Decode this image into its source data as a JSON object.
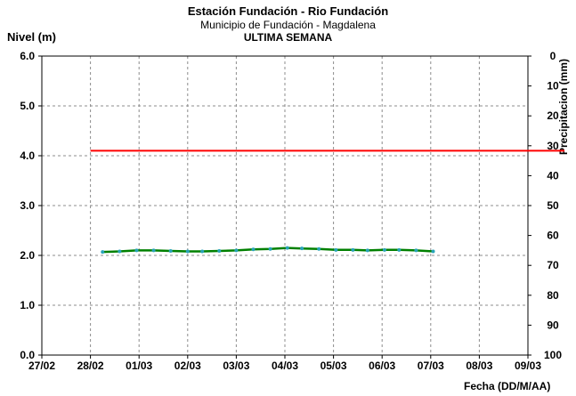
{
  "chart_data": {
    "type": "line",
    "title": "Estación Fundación - Rio Fundación",
    "subtitle": "Municipio de Fundación - Magdalena",
    "subtitle2": "ULTIMA SEMANA",
    "ylabel": "Nivel (m)",
    "y2label": "Precipitacion (mm)",
    "xlabel": "Fecha (DD/M/AA)",
    "x_ticks": [
      "27/02",
      "28/02",
      "01/03",
      "02/03",
      "03/03",
      "04/03",
      "05/03",
      "06/03",
      "07/03",
      "08/03",
      "09/03"
    ],
    "y_ticks": [
      "0.0",
      "1.0",
      "2.0",
      "3.0",
      "4.0",
      "5.0",
      "6.0"
    ],
    "y2_ticks": [
      "0",
      "10",
      "20",
      "30",
      "40",
      "50",
      "60",
      "70",
      "80",
      "90",
      "100"
    ],
    "ylim": [
      0,
      6
    ],
    "y2lim": [
      100,
      0
    ],
    "grid": true,
    "series": [
      {
        "color": "#ff0000",
        "points": [
          [
            1.0,
            4.1
          ],
          [
            10.75,
            4.1
          ]
        ]
      },
      {
        "color": "#008000",
        "marker_color": "#29a3b8",
        "points": [
          [
            1.25,
            2.07
          ],
          [
            1.6,
            2.08
          ],
          [
            1.95,
            2.1
          ],
          [
            2.3,
            2.1
          ],
          [
            2.65,
            2.09
          ],
          [
            3.0,
            2.08
          ],
          [
            3.3,
            2.08
          ],
          [
            3.65,
            2.09
          ],
          [
            4.0,
            2.1
          ],
          [
            4.35,
            2.12
          ],
          [
            4.7,
            2.13
          ],
          [
            5.05,
            2.15
          ],
          [
            5.35,
            2.14
          ],
          [
            5.7,
            2.13
          ],
          [
            6.05,
            2.11
          ],
          [
            6.4,
            2.11
          ],
          [
            6.7,
            2.1
          ],
          [
            7.05,
            2.11
          ],
          [
            7.35,
            2.11
          ],
          [
            7.7,
            2.1
          ],
          [
            8.05,
            2.08
          ]
        ]
      }
    ]
  }
}
